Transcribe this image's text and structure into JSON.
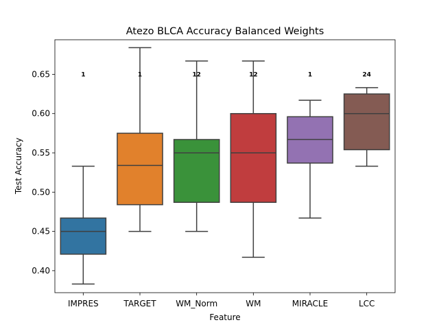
{
  "chart_data": {
    "type": "box",
    "title": "Atezo BLCA Accuracy Balanced Weights",
    "xlabel": "Feature",
    "ylabel": "Test Accuracy",
    "categories": [
      "IMPRES",
      "TARGET",
      "WM_Norm",
      "WM",
      "MIRACLE",
      "LCC"
    ],
    "colors": [
      "#3274a1",
      "#e1812c",
      "#3a923a",
      "#c03d3e",
      "#9372b2",
      "#845b53"
    ],
    "ylim": [
      0.372,
      0.694
    ],
    "yticks": [
      0.4,
      0.45,
      0.5,
      0.55,
      0.6,
      0.65
    ],
    "ytick_labels": [
      "0.40",
      "0.45",
      "0.50",
      "0.55",
      "0.60",
      "0.65"
    ],
    "annotation_y": 0.65,
    "boxes": [
      {
        "label": "IMPRES",
        "whisker_low": 0.383,
        "q1": 0.421,
        "median": 0.45,
        "q3": 0.467,
        "whisker_high": 0.533,
        "annotation": "1"
      },
      {
        "label": "TARGET",
        "whisker_low": 0.45,
        "q1": 0.484,
        "median": 0.534,
        "q3": 0.575,
        "whisker_high": 0.684,
        "annotation": "1"
      },
      {
        "label": "WM_Norm",
        "whisker_low": 0.45,
        "q1": 0.487,
        "median": 0.55,
        "q3": 0.567,
        "whisker_high": 0.667,
        "annotation": "12"
      },
      {
        "label": "WM",
        "whisker_low": 0.417,
        "q1": 0.487,
        "median": 0.55,
        "q3": 0.6,
        "whisker_high": 0.667,
        "annotation": "12"
      },
      {
        "label": "MIRACLE",
        "whisker_low": 0.467,
        "q1": 0.537,
        "median": 0.567,
        "q3": 0.596,
        "whisker_high": 0.617,
        "annotation": "1"
      },
      {
        "label": "LCC",
        "whisker_low": 0.533,
        "q1": 0.554,
        "median": 0.6,
        "q3": 0.625,
        "whisker_high": 0.633,
        "annotation": "24"
      }
    ],
    "grid": false,
    "legend": "none"
  }
}
